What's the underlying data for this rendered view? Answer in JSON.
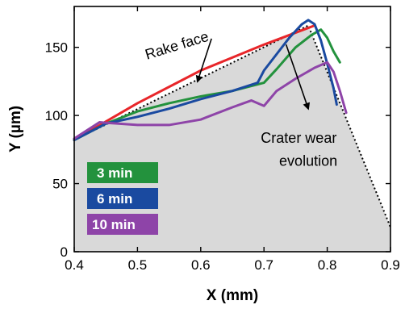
{
  "chart_data": {
    "type": "line",
    "title": "",
    "xlabel": "X (mm)",
    "ylabel": "Y (µm)",
    "xlim": [
      0.4,
      0.9
    ],
    "ylim": [
      0,
      180
    ],
    "xticks": [
      "0.4",
      "0.5",
      "0.6",
      "0.7",
      "0.8",
      "0.9"
    ],
    "yticks": [
      "0",
      "50",
      "100",
      "150"
    ],
    "grid": false,
    "legend_position": "bottom-left",
    "tool_profile": {
      "x": [
        0.4,
        0.77,
        0.9
      ],
      "y": [
        82,
        166,
        18
      ],
      "fill_color": "#d9d9d9"
    },
    "series": [
      {
        "name": "",
        "label": "Rake face",
        "color": "#e8262a",
        "x": [
          0.4,
          0.5,
          0.6,
          0.7,
          0.78
        ],
        "y": [
          82,
          109,
          133,
          152,
          166
        ]
      },
      {
        "name": "3 min",
        "color": "#23923d",
        "x": [
          0.4,
          0.45,
          0.5,
          0.55,
          0.6,
          0.65,
          0.7,
          0.72,
          0.75,
          0.775,
          0.79,
          0.8,
          0.81,
          0.82
        ],
        "y": [
          82,
          94,
          103,
          109,
          114,
          118,
          124,
          134,
          150,
          159,
          163,
          157,
          147,
          139
        ]
      },
      {
        "name": "6 min",
        "color": "#1a4aa0",
        "x": [
          0.4,
          0.45,
          0.5,
          0.55,
          0.6,
          0.65,
          0.69,
          0.7,
          0.72,
          0.74,
          0.76,
          0.77,
          0.78,
          0.79,
          0.8,
          0.81,
          0.815
        ],
        "y": [
          82,
          94,
          99,
          105,
          112,
          118,
          124,
          133,
          145,
          157,
          167,
          170,
          167,
          155,
          138,
          120,
          108
        ]
      },
      {
        "name": "10 min",
        "color": "#8e44a8",
        "x": [
          0.4,
          0.44,
          0.5,
          0.55,
          0.6,
          0.65,
          0.68,
          0.7,
          0.72,
          0.75,
          0.78,
          0.8,
          0.81,
          0.82,
          0.83
        ],
        "y": [
          83,
          95,
          93,
          93,
          97,
          106,
          111,
          107,
          118,
          127,
          135,
          139,
          132,
          118,
          102
        ]
      }
    ],
    "annotations": [
      {
        "text": "Rake face",
        "x": 0.515,
        "y": 141,
        "arrow_to": [
          0.595,
          125
        ]
      },
      {
        "text": "Crater wear",
        "x": 0.755,
        "y": 80,
        "arrow_from": [
          0.735,
          152
        ],
        "arrow_to": [
          0.77,
          105
        ]
      },
      {
        "text": "evolution",
        "x": 0.77,
        "y": 63
      }
    ]
  }
}
